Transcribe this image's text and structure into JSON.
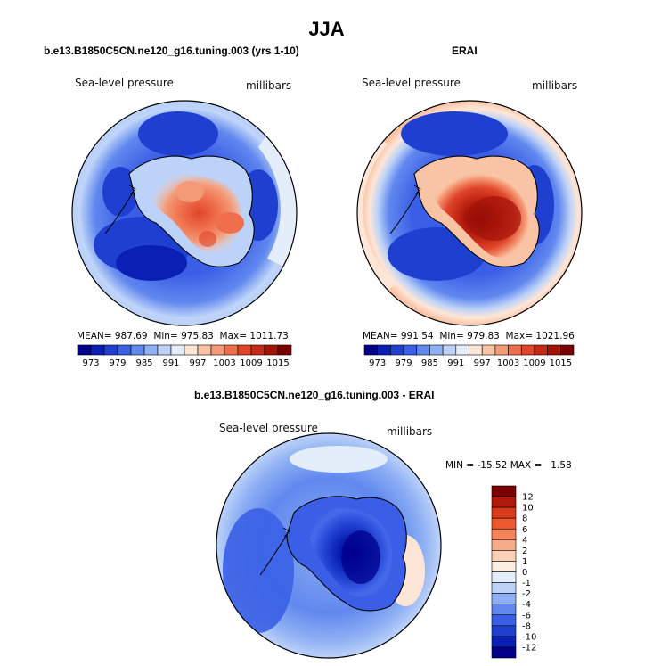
{
  "season_title": "JJA",
  "panels": [
    {
      "title": "b.e13.B1850C5CN.ne120_g16.tuning.003 (yrs 1-10)",
      "left_label": "Sea-level pressure",
      "right_label": "millibars",
      "stats": {
        "mean_label": "MEAN=",
        "mean": "987.69",
        "min_label": "Min=",
        "min": "975.83",
        "max_label": "Max=",
        "max": "1011.73"
      }
    },
    {
      "title": "ERAI",
      "left_label": "Sea-level pressure",
      "right_label": "millibars",
      "stats": {
        "mean_label": "MEAN=",
        "mean": "991.54",
        "min_label": "Min=",
        "min": "979.83",
        "max_label": "Max=",
        "max": "1021.96"
      }
    },
    {
      "title": "b.e13.B1850C5CN.ne120_g16.tuning.003 - ERAI",
      "left_label": "Sea-level pressure",
      "right_label": "millibars",
      "stats": {
        "min_label": "MIN =",
        "min": "-15.52",
        "max_label": "MAX =",
        "max": "1.58"
      }
    }
  ],
  "colorbar_abs": {
    "labels": [
      "973",
      "979",
      "985",
      "991",
      "997",
      "1003",
      "1009",
      "1015"
    ],
    "colors": [
      "#00008b",
      "#0a1fb4",
      "#1e3fd0",
      "#3a5fe6",
      "#6188ef",
      "#8fb0f4",
      "#bcd2f8",
      "#e4eefb",
      "#fde6d8",
      "#f9c4a6",
      "#f59a76",
      "#ef6e4c",
      "#e0452a",
      "#c62a16",
      "#a31308",
      "#7a0000"
    ]
  },
  "colorbar_diff": {
    "labels": [
      "12",
      "10",
      "8",
      "6",
      "4",
      "2",
      "1",
      "0",
      "-1",
      "-2",
      "-4",
      "-6",
      "-8",
      "-10",
      "-12"
    ],
    "colors": [
      "#7a0000",
      "#b01a0a",
      "#d93a1a",
      "#ee5a2e",
      "#f4845a",
      "#f7ab88",
      "#fbd0b6",
      "#fdeee2",
      "#e4eefb",
      "#bcd2f8",
      "#8fb0f4",
      "#6188ef",
      "#3a5fe6",
      "#1e3fd0",
      "#0a1fb4",
      "#00008b"
    ]
  },
  "chart_data": [
    {
      "type": "heatmap",
      "title": "b.e13.B1850C5CN.ne120_g16.tuning.003 (yrs 1-10)",
      "variable": "Sea-level pressure",
      "units": "millibars",
      "projection": "south polar stereographic",
      "mean": 987.69,
      "min": 975.83,
      "max": 1011.73,
      "contour_levels": [
        973,
        976,
        979,
        982,
        985,
        988,
        991,
        994,
        997,
        1000,
        1003,
        1006,
        1009,
        1012,
        1015
      ]
    },
    {
      "type": "heatmap",
      "title": "ERAI",
      "variable": "Sea-level pressure",
      "units": "millibars",
      "projection": "south polar stereographic",
      "mean": 991.54,
      "min": 979.83,
      "max": 1021.96,
      "contour_levels": [
        973,
        976,
        979,
        982,
        985,
        988,
        991,
        994,
        997,
        1000,
        1003,
        1006,
        1009,
        1012,
        1015
      ]
    },
    {
      "type": "heatmap",
      "title": "b.e13.B1850C5CN.ne120_g16.tuning.003 - ERAI",
      "variable": "Sea-level pressure",
      "units": "millibars",
      "projection": "south polar stereographic",
      "min": -15.52,
      "max": 1.58,
      "contour_levels": [
        -12,
        -10,
        -8,
        -6,
        -4,
        -2,
        -1,
        0,
        1,
        2,
        4,
        6,
        8,
        10,
        12
      ]
    }
  ]
}
